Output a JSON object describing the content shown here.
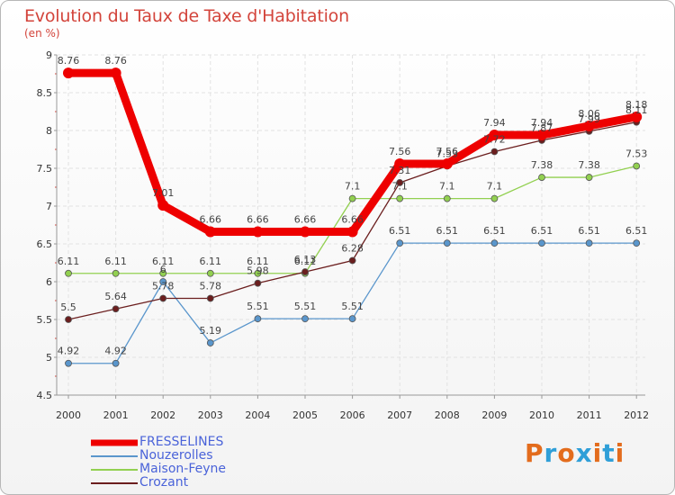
{
  "header": {
    "title": "Evolution du Taux de Taxe d'Habitation",
    "subtitle": "(en %)"
  },
  "logo": {
    "text": "Proxiti",
    "colors": [
      "#e36c1d",
      "#2f9fd8",
      "#e36c1d",
      "#2f9fd8",
      "#e36c1d",
      "#2f9fd8",
      "#e36c1d"
    ]
  },
  "chart_data": {
    "type": "line",
    "title": "Evolution du Taux de Taxe d'Habitation",
    "subtitle": "(en %)",
    "xlabel": "",
    "ylabel": "",
    "ylim": [
      4.5,
      9
    ],
    "yticks": [
      "4.5",
      "5",
      "5.5",
      "6",
      "6.5",
      "7",
      "7.5",
      "8",
      "8.5",
      "9"
    ],
    "categories": [
      "2000",
      "2001",
      "2002",
      "2003",
      "2004",
      "2005",
      "2006",
      "2007",
      "2008",
      "2009",
      "2010",
      "2011",
      "2012"
    ],
    "grid": true,
    "legend_position": "bottom-left",
    "series": [
      {
        "name": "FRESSELINES",
        "color": "#ee0000",
        "values": [
          8.76,
          8.76,
          7.01,
          6.66,
          6.66,
          6.66,
          6.66,
          7.56,
          7.56,
          7.94,
          7.94,
          8.06,
          8.18
        ],
        "labels": [
          "8.76",
          "8.76",
          "7.01",
          "6.66",
          "6.66",
          "6.66",
          "6.66",
          "7.56",
          "7.56",
          "7.94",
          "7.94",
          "8.06",
          "8.18"
        ]
      },
      {
        "name": "Nouzerolles",
        "color": "#5a96cc",
        "values": [
          4.92,
          4.92,
          6,
          5.19,
          5.51,
          5.51,
          5.51,
          6.51,
          6.51,
          6.51,
          6.51,
          6.51,
          6.51
        ],
        "labels": [
          "4.92",
          "4.92",
          "6",
          "5.19",
          "5.51",
          "5.51",
          "5.51",
          "6.51",
          "6.51",
          "6.51",
          "6.51",
          "6.51",
          "6.51"
        ]
      },
      {
        "name": "Maison-Feyne",
        "color": "#92d050",
        "values": [
          6.11,
          6.11,
          6.11,
          6.11,
          6.11,
          6.11,
          7.1,
          7.1,
          7.1,
          7.1,
          7.38,
          7.38,
          7.53
        ],
        "labels": [
          "6.11",
          "6.11",
          "6.11",
          "6.11",
          "6.11",
          "6.11",
          "7.1",
          "7.1",
          "7.1",
          "7.1",
          "7.38",
          "7.38",
          "7.53"
        ]
      },
      {
        "name": "Crozant",
        "color": "#6b1e1e",
        "values": [
          5.5,
          5.64,
          5.78,
          5.78,
          5.98,
          6.13,
          6.28,
          7.31,
          7.53,
          7.72,
          7.87,
          7.99,
          8.11
        ],
        "labels": [
          "5.5",
          "5.64",
          "5.78",
          "5.78",
          "5.98",
          "6.13",
          "6.28",
          "7.31",
          "7.53",
          "7.72",
          "7.87",
          "7.99",
          "8.11"
        ]
      }
    ]
  }
}
